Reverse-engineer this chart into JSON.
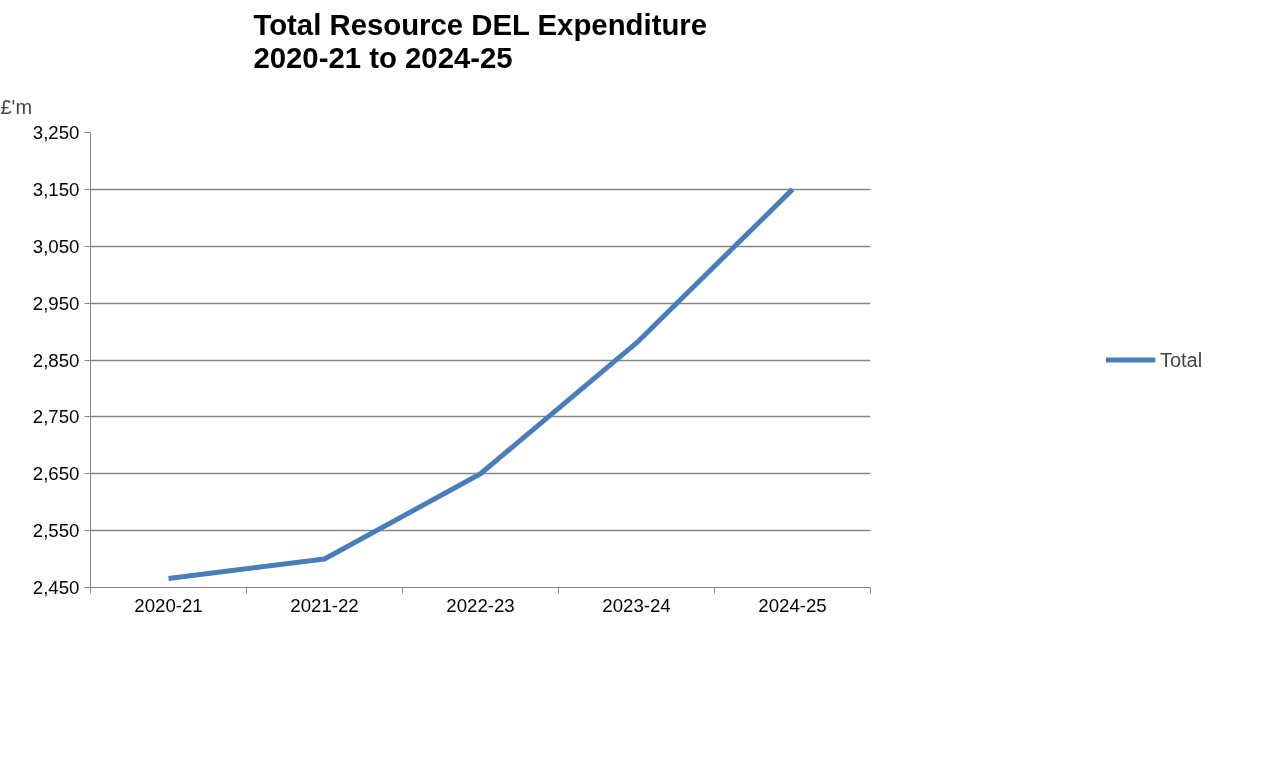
{
  "chart_data": {
    "type": "line",
    "title": "Total Resource DEL Expenditure\n2020-21 to 2024-25",
    "ylabel": "£'m",
    "categories": [
      "2020-21",
      "2021-22",
      "2022-23",
      "2023-24",
      "2024-25"
    ],
    "series": [
      {
        "name": "Total",
        "color": "#4a7ebb",
        "values": [
          2466,
          2500,
          2650,
          2880,
          3150
        ]
      }
    ],
    "ylim": [
      2450,
      3250
    ],
    "yticks": [
      {
        "value": 2450,
        "label": "2,450"
      },
      {
        "value": 2550,
        "label": "2,550"
      },
      {
        "value": 2650,
        "label": "2,650"
      },
      {
        "value": 2750,
        "label": "2,750"
      },
      {
        "value": 2850,
        "label": "2,850"
      },
      {
        "value": 2950,
        "label": "2,950"
      },
      {
        "value": 3050,
        "label": "3,050"
      },
      {
        "value": 3150,
        "label": "3,150"
      },
      {
        "value": 3250,
        "label": "3,250"
      }
    ],
    "grid": "y",
    "legend": "right",
    "marker": "none",
    "line_style": "solid"
  }
}
